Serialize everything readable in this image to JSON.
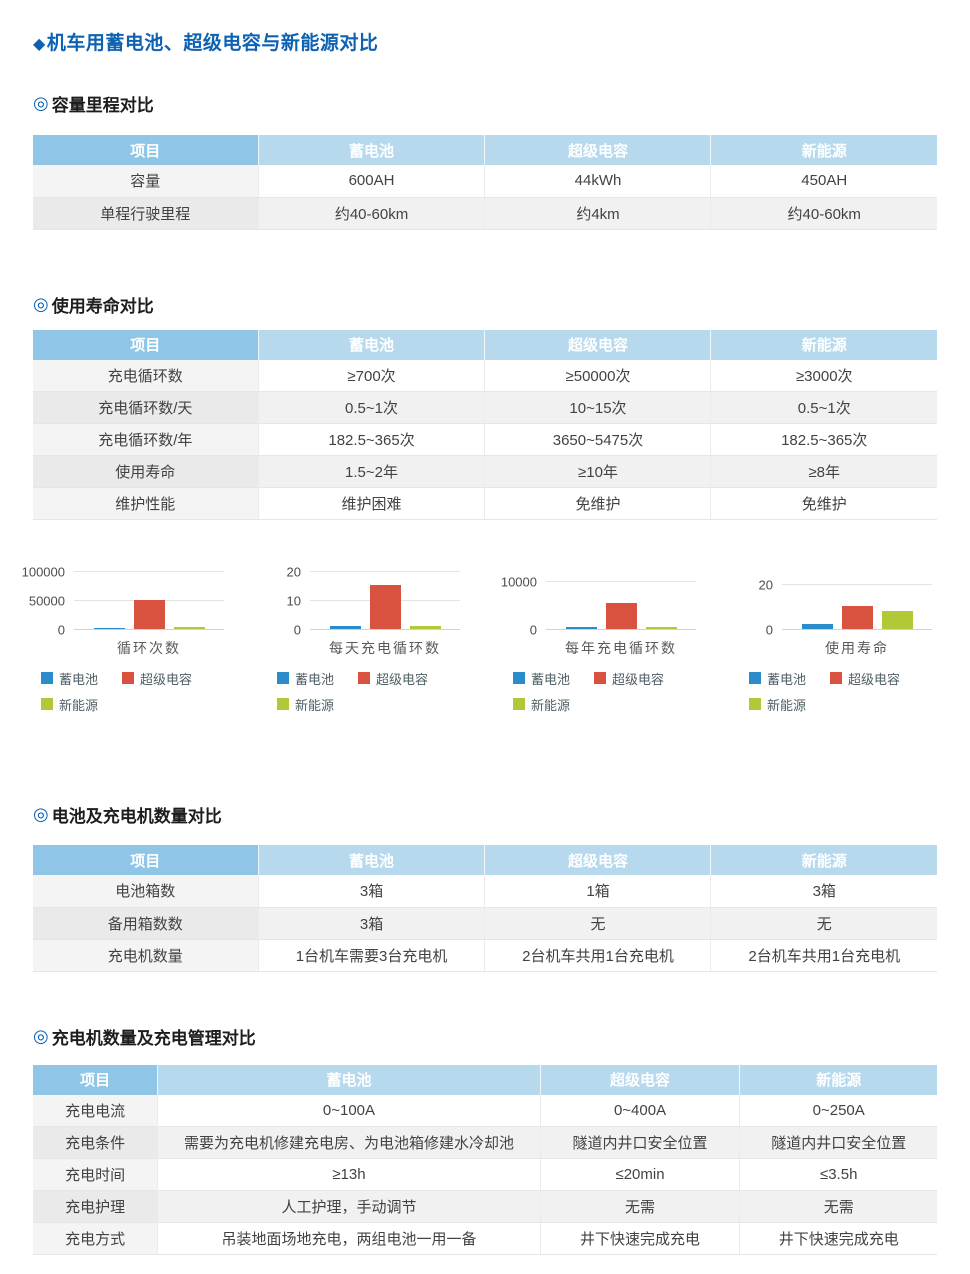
{
  "title": {
    "bullet": "◆",
    "text": "机车用蓄电池、超级电容与新能源对比"
  },
  "section_marker": "◎",
  "colors": {
    "title_blue": "#0e62b2",
    "header_first_cell": "#8fc6e8",
    "header_cell": "#b7d9ee",
    "series": [
      "#2b8ccb",
      "#d8523f",
      "#b2c836"
    ]
  },
  "sections": [
    {
      "heading": "容量里程对比",
      "table": {
        "headers": [
          "项目",
          "蓄电池",
          "超级电容",
          "新能源"
        ],
        "rows": [
          [
            "容量",
            "600AH",
            "44kWh",
            "450AH"
          ],
          [
            "单程行驶里程",
            "约40-60km",
            "约4km",
            "约40-60km"
          ]
        ]
      }
    },
    {
      "heading": "使用寿命对比",
      "table": {
        "headers": [
          "项目",
          "蓄电池",
          "超级电容",
          "新能源"
        ],
        "rows": [
          [
            "充电循环数",
            "≥700次",
            "≥50000次",
            "≥3000次"
          ],
          [
            "充电循环数/天",
            "0.5~1次",
            "10~15次",
            "0.5~1次"
          ],
          [
            "充电循环数/年",
            "182.5~365次",
            "3650~5475次",
            "182.5~365次"
          ],
          [
            "使用寿命",
            "1.5~2年",
            "≥10年",
            "≥8年"
          ],
          [
            "维护性能",
            "维护困难",
            "免维护",
            "免维护"
          ]
        ]
      }
    },
    {
      "heading": "电池及充电机数量对比",
      "table": {
        "headers": [
          "项目",
          "蓄电池",
          "超级电容",
          "新能源"
        ],
        "rows": [
          [
            "电池箱数",
            "3箱",
            "1箱",
            "3箱"
          ],
          [
            "备用箱数数",
            "3箱",
            "无",
            "无"
          ],
          [
            "充电机数量",
            "1台机车需要3台充电机",
            "2台机车共用1台充电机",
            "2台机车共用1台充电机"
          ]
        ]
      }
    },
    {
      "heading": "充电机数量及充电管理对比",
      "table": {
        "headers": [
          "项目",
          "蓄电池",
          "超级电容",
          "新能源"
        ],
        "rows": [
          [
            "充电电流",
            "0~100A",
            "0~400A",
            "0~250A"
          ],
          [
            "充电条件",
            "需要为充电机修建充电房、为电池箱修建水冷却池",
            "隧道内井口安全位置",
            "隧道内井口安全位置"
          ],
          [
            "充电时间",
            "≥13h",
            "≤20min",
            "≤3.5h"
          ],
          [
            "充电护理",
            "人工护理，手动调节",
            "无需",
            "无需"
          ],
          [
            "充电方式",
            "吊装地面场地充电，两组电池一用一备",
            "井下快速完成充电",
            "井下快速完成充电"
          ]
        ]
      }
    }
  ],
  "chart_data": [
    {
      "type": "bar",
      "title": "循环次数",
      "categories": [
        "蓄电池",
        "超级电容",
        "新能源"
      ],
      "values": [
        700,
        50000,
        3000
      ],
      "ylim": [
        0,
        100000
      ],
      "yticks": [
        0,
        50000,
        100000
      ],
      "grid": true,
      "legend_position": "bottom"
    },
    {
      "type": "bar",
      "title": "每天充电循环数",
      "categories": [
        "蓄电池",
        "超级电容",
        "新能源"
      ],
      "values": [
        1,
        15,
        1
      ],
      "ylim": [
        0,
        20
      ],
      "yticks": [
        0,
        10,
        20
      ],
      "grid": true,
      "legend_position": "bottom"
    },
    {
      "type": "bar",
      "title": "每年充电循环数",
      "categories": [
        "蓄电池",
        "超级电容",
        "新能源"
      ],
      "values": [
        365,
        5475,
        365
      ],
      "ylim": [
        0,
        10000
      ],
      "yticks": [
        0,
        10000
      ],
      "grid": true,
      "legend_position": "bottom"
    },
    {
      "type": "bar",
      "title": "使用寿命",
      "categories": [
        "蓄电池",
        "超级电容",
        "新能源"
      ],
      "values": [
        2,
        10,
        8
      ],
      "ylim": [
        0,
        20
      ],
      "yticks": [
        0,
        20
      ],
      "grid": true,
      "legend_position": "bottom"
    }
  ]
}
